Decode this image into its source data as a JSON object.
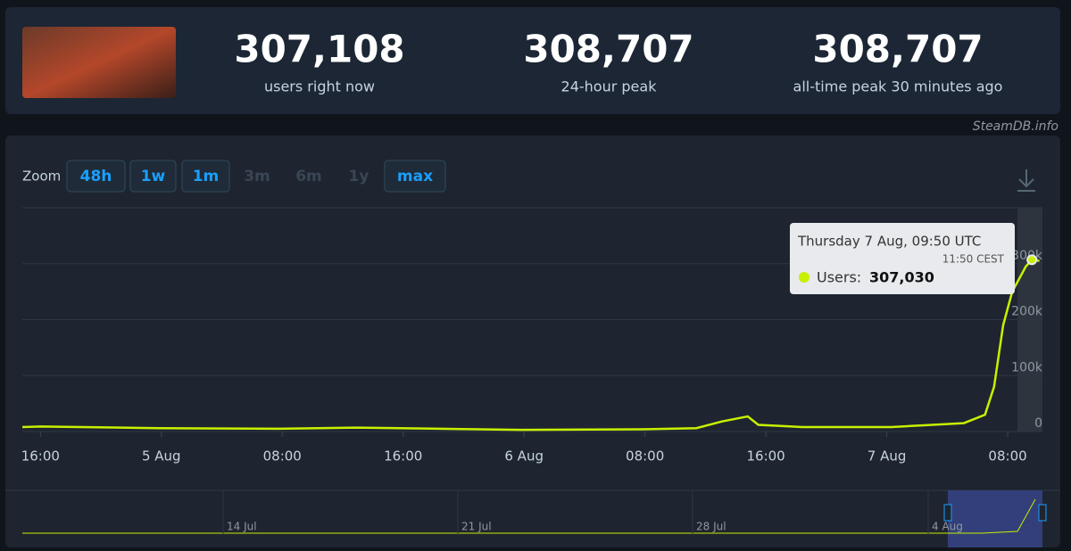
{
  "stats": [
    {
      "value": "307,108",
      "label": "users right now"
    },
    {
      "value": "308,707",
      "label": "24-hour peak"
    },
    {
      "value": "308,707",
      "label": "all-time peak 30 minutes ago"
    }
  ],
  "source": "SteamDB.info",
  "zoom": {
    "label": "Zoom",
    "buttons": [
      {
        "label": "48h",
        "enabled": true
      },
      {
        "label": "1w",
        "enabled": true
      },
      {
        "label": "1m",
        "enabled": true
      },
      {
        "label": "3m",
        "enabled": false
      },
      {
        "label": "6m",
        "enabled": false
      },
      {
        "label": "1y",
        "enabled": false
      },
      {
        "label": "max",
        "enabled": true
      }
    ]
  },
  "tooltip": {
    "date": "Thursday 7 Aug, 09:50 UTC",
    "local": "11:50 CEST",
    "series": "Users:",
    "value": "307,030"
  },
  "navigator": {
    "labels": [
      "14 Jul",
      "21 Jul",
      "28 Jul",
      "4 Aug"
    ]
  },
  "chart_data": {
    "type": "line",
    "x": [
      -1.2,
      0,
      7.8,
      15.8,
      20.9,
      23.8,
      31.8,
      39.8,
      43.4,
      45.1,
      46.8,
      47.5,
      50.4,
      56.3,
      61.1,
      62.5,
      63.1,
      63.7,
      64.3,
      65.2,
      65.6,
      66.1
    ],
    "series": [
      {
        "name": "Users",
        "color": "#c8f000",
        "values": [
          8000,
          9000,
          6000,
          5000,
          7000,
          6000,
          3000,
          4000,
          6000,
          18000,
          27000,
          12000,
          8000,
          8000,
          15000,
          30000,
          80000,
          190000,
          250000,
          295000,
          307030,
          305000
        ]
      }
    ],
    "xlim": [
      -1.2,
      66.3
    ],
    "xticks": [
      {
        "value": 0,
        "label": "16:00"
      },
      {
        "value": 8,
        "label": "5 Aug"
      },
      {
        "value": 16,
        "label": "08:00"
      },
      {
        "value": 24,
        "label": "16:00"
      },
      {
        "value": 32,
        "label": "6 Aug"
      },
      {
        "value": 40,
        "label": "08:00"
      },
      {
        "value": 48,
        "label": "16:00"
      },
      {
        "value": 56,
        "label": "7 Aug"
      },
      {
        "value": 64,
        "label": "08:00"
      }
    ],
    "ylim": [
      0,
      400000
    ],
    "yticks": [
      0,
      {
        "value": 100000,
        "label": "100k"
      },
      {
        "value": 200000,
        "label": "200k"
      },
      {
        "value": 300000,
        "label": "300k"
      }
    ],
    "grid": true
  }
}
